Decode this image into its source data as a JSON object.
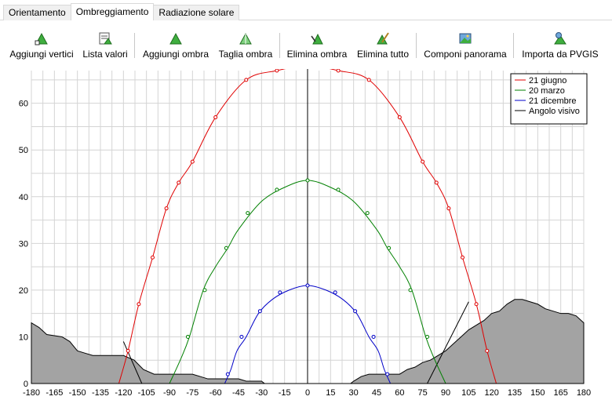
{
  "tabs": [
    {
      "label": "Orientamento"
    },
    {
      "label": "Ombreggiamento"
    },
    {
      "label": "Radiazione solare"
    }
  ],
  "toolbar": [
    {
      "label": "Aggiungi vertici",
      "icon": "add-vertices-icon"
    },
    {
      "label": "Lista valori",
      "icon": "value-list-icon"
    },
    {
      "label": "Aggiungi ombra",
      "icon": "add-shadow-icon"
    },
    {
      "label": "Taglia ombra",
      "icon": "cut-shadow-icon"
    },
    {
      "label": "Elimina ombra",
      "icon": "delete-shadow-icon"
    },
    {
      "label": "Elimina tutto",
      "icon": "delete-all-icon"
    },
    {
      "label": "Componi panorama",
      "icon": "compose-panorama-icon"
    },
    {
      "label": "Importa da PVGIS",
      "icon": "import-pvgis-icon"
    }
  ],
  "chart_data": {
    "type": "line",
    "xlim": [
      -180,
      180
    ],
    "ylim": [
      0,
      67
    ],
    "x_ticks": [
      -180,
      -165,
      -150,
      -135,
      -120,
      -105,
      -90,
      -75,
      -60,
      -45,
      -30,
      -15,
      0,
      15,
      30,
      45,
      60,
      75,
      90,
      105,
      120,
      135,
      150,
      165,
      180
    ],
    "y_ticks": [
      0,
      10,
      20,
      30,
      40,
      50,
      60
    ],
    "grid": true,
    "legend_position": "top-right",
    "series": [
      {
        "name": "21 giugno",
        "color": "#e00000",
        "x": [
          -123,
          -117,
          -110,
          -101,
          -92,
          -84,
          -75,
          -60,
          -40,
          -20,
          0,
          20,
          40,
          60,
          75,
          84,
          92,
          101,
          110,
          117,
          123
        ],
        "y": [
          0,
          7,
          17,
          27,
          37.5,
          43,
          47.5,
          57,
          65,
          67,
          68,
          67,
          65,
          57,
          47.5,
          43,
          37.5,
          27,
          17,
          7,
          0
        ]
      },
      {
        "name": "20 marzo",
        "color": "#008000",
        "x": [
          -90,
          -83,
          -77,
          -68,
          -60,
          -52,
          -45,
          -30,
          -15,
          0,
          15,
          30,
          45,
          52,
          60,
          68,
          77,
          83,
          90
        ],
        "y": [
          0,
          5,
          10,
          20,
          25,
          29,
          33,
          39,
          42,
          43.5,
          42,
          39,
          33,
          29,
          25,
          20,
          10,
          5,
          0
        ],
        "markers_x": [
          -78,
          -67,
          -53,
          -39,
          -20,
          0,
          20,
          39,
          53,
          67,
          78
        ],
        "markers_y": [
          10,
          20,
          29,
          36.5,
          41.5,
          43.5,
          41.5,
          36.5,
          29,
          20,
          10
        ]
      },
      {
        "name": "21 dicembre",
        "color": "#0000c8",
        "x": [
          -54,
          -50,
          -46,
          -40,
          -32,
          -23,
          -12,
          0,
          12,
          23,
          32,
          40,
          46,
          50,
          54
        ],
        "y": [
          0,
          3,
          7,
          10,
          15,
          18,
          20,
          21,
          20,
          18,
          15,
          10,
          7,
          3,
          0
        ],
        "markers_x": [
          -52,
          -43,
          -31,
          -18,
          0,
          18,
          31,
          43,
          52
        ],
        "markers_y": [
          2,
          10,
          15.5,
          19.5,
          21,
          19.5,
          15.5,
          10,
          2
        ]
      },
      {
        "name": "Angolo visivo",
        "color": "#000000"
      }
    ],
    "horizon_profile": {
      "x": [
        -180,
        -175,
        -170,
        -160,
        -155,
        -150,
        -145,
        -140,
        -130,
        -120,
        -113,
        -107,
        -100,
        -95,
        -90,
        -85,
        -80,
        -75,
        -70,
        -65,
        -60,
        -55,
        -50,
        -45,
        -40,
        -35,
        -30,
        -28,
        28,
        30,
        35,
        40,
        45,
        50,
        55,
        60,
        65,
        70,
        75,
        80,
        85,
        90,
        95,
        100,
        105,
        110,
        115,
        120,
        125,
        130,
        135,
        140,
        145,
        150,
        155,
        160,
        165,
        170,
        175,
        180
      ],
      "y": [
        13,
        12,
        10.5,
        10,
        9,
        7,
        6.5,
        6,
        6,
        6,
        5,
        3,
        2,
        2,
        2,
        2,
        2,
        2,
        1.5,
        1,
        1,
        1,
        1,
        1,
        0.5,
        0.5,
        0.5,
        0,
        0,
        0.5,
        1.5,
        2,
        2,
        2,
        2,
        2,
        3,
        3.5,
        4.5,
        5,
        6,
        7,
        8.5,
        10,
        11.5,
        12.5,
        13.5,
        15,
        15.5,
        17,
        18,
        18,
        17.5,
        17,
        16,
        15.5,
        15,
        15,
        14.5,
        13
      ]
    }
  }
}
